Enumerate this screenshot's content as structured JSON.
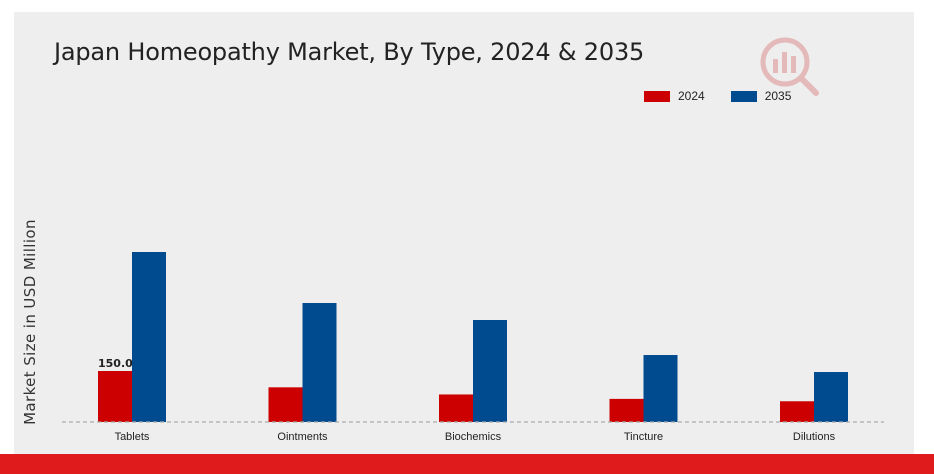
{
  "chart_data": {
    "type": "bar",
    "title": "Japan Homeopathy Market, By Type, 2024 & 2035",
    "xlabel": "",
    "ylabel": "Market Size in USD Million",
    "categories": [
      "Tablets",
      "Ointments",
      "Biochemics",
      "Tincture",
      "Dilutions"
    ],
    "series": [
      {
        "name": "2024",
        "color": "#cc0000",
        "values": [
          150.0,
          102,
          81,
          68,
          61
        ]
      },
      {
        "name": "2035",
        "color": "#004a8f",
        "values": [
          500,
          350,
          300,
          197,
          147
        ]
      }
    ],
    "data_labels": [
      {
        "series": "2024",
        "category": "Tablets",
        "text": "150.0"
      }
    ],
    "ylim": [
      0,
      600
    ],
    "grid": false,
    "legend_position": "top-right"
  },
  "colors": {
    "background": "#eeeeee",
    "accent_bar": "#e01b1b",
    "baseline": "#aaaaaa"
  },
  "watermark_icon": "logo-watermark-icon"
}
